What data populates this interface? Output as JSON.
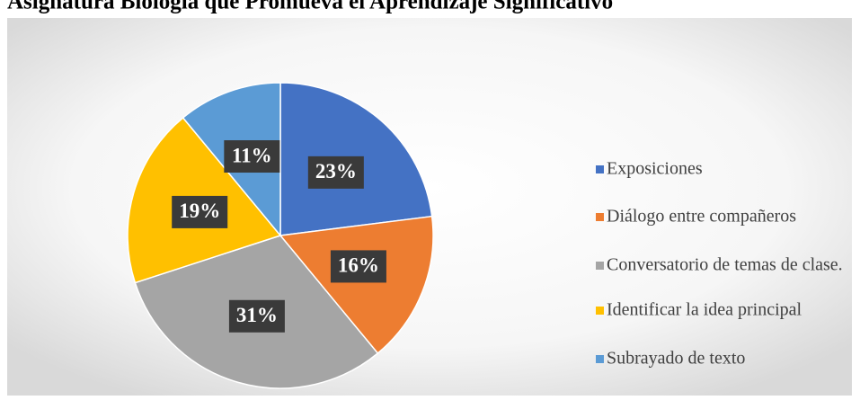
{
  "chart_data": {
    "type": "pie",
    "title": "Asignatura Biología que Promueva el Aprendizaje Significativo",
    "categories": [
      "Exposiciones",
      "Diálogo entre compañeros",
      "Conversatorio de temas de clase.",
      "Identificar la idea principal",
      "Subrayado de texto"
    ],
    "values": [
      23,
      16,
      31,
      19,
      11
    ],
    "value_labels": [
      "23%",
      "16%",
      "31%",
      "19%",
      "11%"
    ],
    "colors": [
      "#4472c4",
      "#ed7d31",
      "#a5a5a5",
      "#ffc000",
      "#5b9bd5"
    ],
    "legend": "right"
  }
}
